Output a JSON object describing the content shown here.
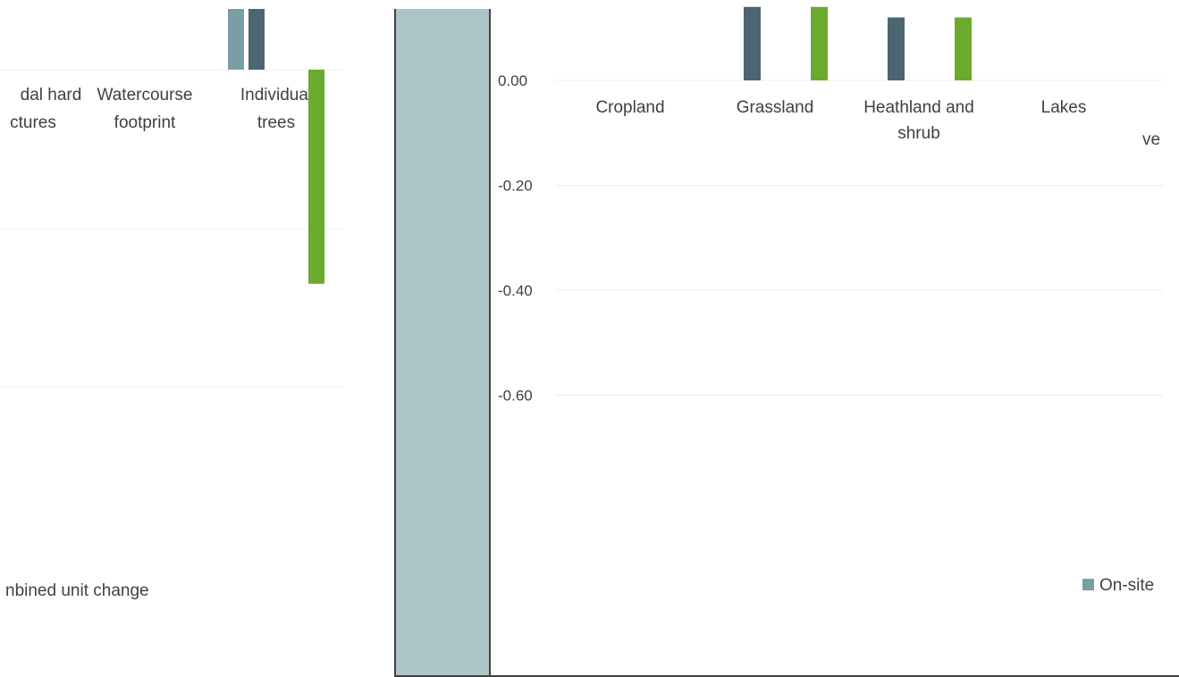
{
  "colors": {
    "on_site": "#7a9ea6",
    "dark": "#4a6670",
    "green": "#6aaa2e",
    "separator": "#adc4c9",
    "grid": "#ececec",
    "axis": "#404040"
  },
  "chart_data": [
    {
      "type": "bar",
      "title": "",
      "categories": [
        [
          "dal hard",
          "ctures"
        ],
        [
          "Watercourse",
          "footprint"
        ],
        [
          "Individual",
          "trees"
        ]
      ],
      "series": [
        {
          "color": "on_site",
          "values": [
            null,
            null,
            0.08
          ]
        },
        {
          "color": "dark",
          "values": [
            null,
            null,
            0.08
          ]
        },
        {
          "color": "green",
          "values": [
            null,
            null,
            -0.27
          ]
        }
      ],
      "ylim": [
        -0.35,
        0.08
      ],
      "legend_partial": "nbined unit change"
    },
    {
      "type": "bar",
      "title": "",
      "categories": [
        [
          "Cropland"
        ],
        [
          "Grassland"
        ],
        [
          "Heathland and",
          "shrub"
        ],
        [
          "Lakes"
        ],
        [
          "",
          "ve"
        ]
      ],
      "series": [
        {
          "color": "dark",
          "values": [
            null,
            0.14,
            0.12,
            null,
            null
          ]
        },
        {
          "color": "green",
          "values": [
            null,
            0.14,
            0.12,
            null,
            null
          ]
        }
      ],
      "y_ticks": [
        "0.00",
        "-0.20",
        "-0.40",
        "-0.60"
      ],
      "y_tick_values": [
        0,
        -0.2,
        -0.4,
        -0.6
      ],
      "ylim": [
        -0.6,
        0.14
      ],
      "legend": [
        {
          "label": "On-site",
          "color": "on_site"
        }
      ]
    }
  ]
}
